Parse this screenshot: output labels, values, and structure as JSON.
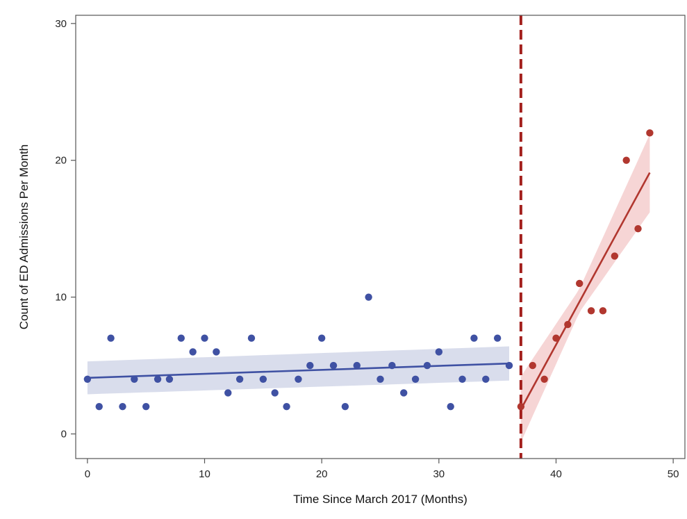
{
  "chart_data": {
    "type": "scatter",
    "title": "",
    "xlabel": "Time Since March 2017 (Months)",
    "ylabel": "Count of ED Admissions Per Month",
    "xlim": [
      -1,
      51
    ],
    "ylim": [
      -1.8,
      30.6
    ],
    "x_ticks": [
      0,
      10,
      20,
      30,
      40,
      50
    ],
    "y_ticks": [
      0,
      10,
      20,
      30
    ],
    "grid": false,
    "intervention_x": 37,
    "series": [
      {
        "color": "#3f51a3",
        "band_color": "#d5d9ea",
        "x": [
          0,
          1,
          2,
          3,
          4,
          5,
          6,
          7,
          8,
          9,
          10,
          11,
          12,
          13,
          14,
          15,
          16,
          17,
          18,
          19,
          20,
          21,
          22,
          23,
          24,
          25,
          26,
          27,
          28,
          29,
          30,
          31,
          32,
          33,
          34,
          35,
          36
        ],
        "y": [
          4,
          2,
          7,
          2,
          4,
          2,
          4,
          4,
          7,
          6,
          7,
          6,
          3,
          4,
          7,
          4,
          3,
          2,
          4,
          5,
          7,
          5,
          2,
          5,
          10,
          4,
          5,
          3,
          4,
          5,
          6,
          2,
          4,
          7,
          4,
          7,
          5
        ],
        "fit": {
          "x": [
            0,
            36
          ],
          "y": [
            4.1,
            5.15
          ]
        },
        "band": {
          "x": [
            0,
            36
          ],
          "lower": [
            2.9,
            3.9
          ],
          "upper": [
            5.3,
            6.4
          ]
        }
      },
      {
        "color": "#b1372f",
        "band_color": "#f5d0d0",
        "x": [
          37,
          38,
          39,
          40,
          41,
          42,
          43,
          44,
          45,
          46,
          47,
          48
        ],
        "y": [
          2,
          5,
          4,
          7,
          8,
          11,
          9,
          9,
          13,
          20,
          15,
          22
        ],
        "fit": {
          "x": [
            37,
            48
          ],
          "y": [
            1.8,
            19.1
          ]
        },
        "band": {
          "x": [
            37,
            42,
            48
          ],
          "lower": [
            -0.6,
            8.9,
            16.2
          ],
          "upper": [
            4.2,
            10.6,
            21.9
          ]
        }
      }
    ]
  }
}
